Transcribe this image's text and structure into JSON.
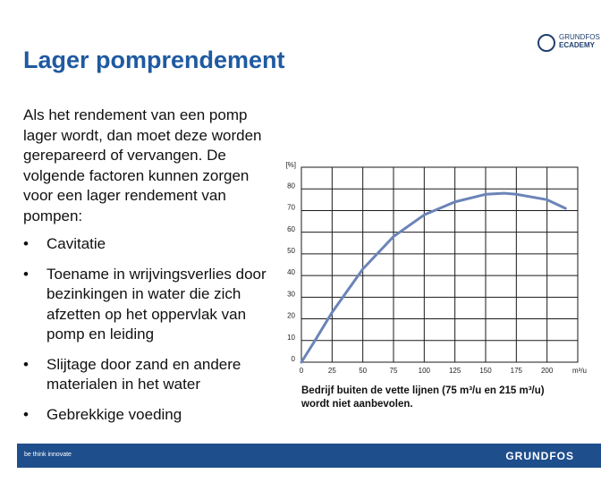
{
  "logo": {
    "line1": "GRUNDFOS",
    "line2": "ECADEMY"
  },
  "title": "Lager pomprendement",
  "paragraph": "Als het rendement van een pomp lager wordt, dan moet deze worden gerepareerd of vervangen. De volgende factoren kunnen zorgen voor een lager rendement van pompen:",
  "bullets": [
    "Cavitatie",
    "Toename in wrijvingsverlies door bezinkingen in water die zich afzetten op het oppervlak van pomp en leiding",
    "Slijtage door zand en andere materialen in het water",
    "Gebrekkige voeding"
  ],
  "chart_data": {
    "type": "line",
    "y_label": "[%]",
    "x_label": "m³/u",
    "x": [
      0,
      10,
      25,
      50,
      75,
      100,
      125,
      150,
      165,
      175,
      200,
      215
    ],
    "values": [
      0,
      9,
      23,
      43,
      58,
      68,
      74,
      77.5,
      78,
      77.5,
      75,
      71
    ],
    "color": "#6b84b8",
    "xlim": [
      0,
      225
    ],
    "xticks": [
      0,
      25,
      50,
      75,
      100,
      125,
      150,
      175,
      200
    ],
    "ylim": [
      0,
      90
    ],
    "yticks": [
      0,
      10,
      20,
      30,
      40,
      50,
      60,
      70,
      80
    ],
    "grid": true
  },
  "caption": [
    "Bedrijf buiten de vette lijnen (75 m³/u en 215 m³/u)",
    "wordt niet aanbevolen."
  ],
  "footer": {
    "tagline": "be think innovate",
    "brand": "GRUNDFOS"
  }
}
